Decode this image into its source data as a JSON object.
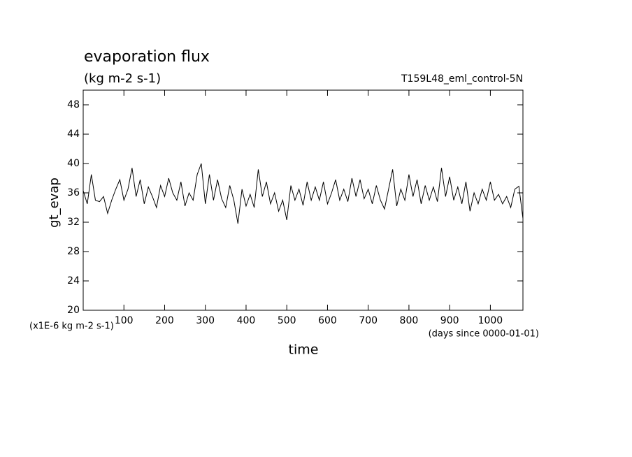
{
  "chart_data": {
    "type": "line",
    "title": "evaporation flux",
    "subtitle": "(kg m-2 s-1)",
    "annotation": "T159L48_eml_control-5N",
    "ylabel": "gt_evap",
    "xlabel": "time",
    "yunits": "(x1E-6 kg m-2 s-1)",
    "xunits": "(days since 0000-01-01)",
    "xlim": [
      0,
      1080
    ],
    "ylim": [
      20,
      50
    ],
    "xticks": [
      100,
      200,
      300,
      400,
      500,
      600,
      700,
      800,
      900,
      1000
    ],
    "yticks": [
      20,
      24,
      28,
      32,
      36,
      40,
      44,
      48
    ],
    "x": [
      0,
      10,
      20,
      30,
      40,
      50,
      60,
      70,
      80,
      90,
      100,
      110,
      120,
      130,
      140,
      150,
      160,
      170,
      180,
      190,
      200,
      210,
      220,
      230,
      240,
      250,
      260,
      270,
      280,
      290,
      300,
      310,
      320,
      330,
      340,
      350,
      360,
      370,
      380,
      390,
      400,
      410,
      420,
      430,
      440,
      450,
      460,
      470,
      480,
      490,
      500,
      510,
      520,
      530,
      540,
      550,
      560,
      570,
      580,
      590,
      600,
      610,
      620,
      630,
      640,
      650,
      660,
      670,
      680,
      690,
      700,
      710,
      720,
      730,
      740,
      750,
      760,
      770,
      780,
      790,
      800,
      810,
      820,
      830,
      840,
      850,
      860,
      870,
      880,
      890,
      900,
      910,
      920,
      930,
      940,
      950,
      960,
      970,
      980,
      990,
      1000,
      1010,
      1020,
      1030,
      1040,
      1050,
      1060,
      1070,
      1080
    ],
    "series": [
      {
        "color": "#000000",
        "values": [
          36.3,
          34.5,
          38.5,
          35,
          34.8,
          35.5,
          33.2,
          35,
          36.5,
          37.8,
          35,
          36.5,
          39.4,
          35.5,
          37.8,
          34.5,
          36.8,
          35.5,
          34,
          37,
          35.5,
          38,
          36,
          35,
          37.5,
          34.2,
          36,
          35,
          38.5,
          40,
          34.5,
          38.5,
          35,
          37.8,
          35.2,
          34,
          37,
          35,
          31.8,
          36.5,
          34.2,
          35.8,
          34,
          39.2,
          35.5,
          37.5,
          34.5,
          36,
          33.5,
          35,
          32.3,
          37,
          35,
          36.5,
          34.3,
          37.5,
          35,
          36.8,
          35,
          37.5,
          34.5,
          36,
          37.8,
          35,
          36.5,
          34.8,
          38,
          35.5,
          37.8,
          35.2,
          36.5,
          34.5,
          37,
          35,
          33.8,
          36.5,
          39.2,
          34.2,
          36.5,
          35,
          38.5,
          35.5,
          37.8,
          34.5,
          37,
          35,
          36.8,
          34.8,
          39.4,
          35.5,
          38.2,
          35,
          36.8,
          34.5,
          37.5,
          33.5,
          36,
          34.5,
          36.5,
          35,
          37.5,
          35,
          35.8,
          34.5,
          35.5,
          34,
          36.5,
          36.9,
          32.5
        ]
      }
    ]
  }
}
